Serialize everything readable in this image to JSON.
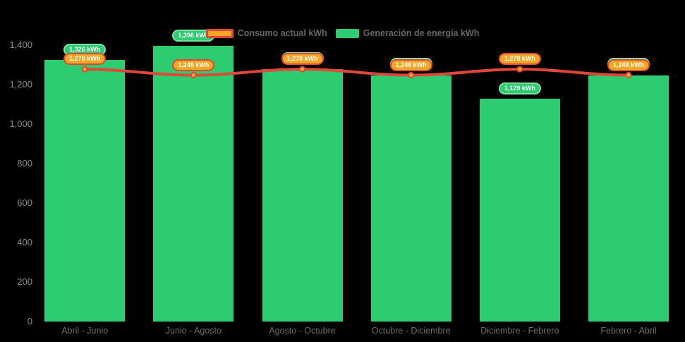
{
  "chart_data": {
    "type": "bar",
    "title": "",
    "xlabel": "",
    "ylabel": "",
    "categories": [
      "Abril - Junio",
      "Junio - Agosto",
      "Agosto - Octubre",
      "Octubre - Diciembre",
      "Diciembre - Febrero",
      "Febrero - Abril"
    ],
    "series": [
      {
        "name": "Consumo actual kWh",
        "type": "line",
        "values": [
          1278,
          1248,
          1278,
          1248,
          1278,
          1248
        ],
        "labels": [
          "1,278 kWh",
          "1,248 kWh",
          "1,278 kWh",
          "1,248 kWh",
          "1,278 kWh",
          "1,248 kWh"
        ]
      },
      {
        "name": "Generación de energía kWh",
        "type": "bar",
        "values": [
          1326,
          1396,
          1278,
          1248,
          1129,
          1248
        ],
        "labels": [
          "1,326 kWh",
          "1,396 kWh",
          "1,278 kWh",
          "1,248 kWh",
          "1,129 kWh",
          "1,248 kWh"
        ]
      }
    ],
    "ylim": [
      0,
      1400
    ],
    "y_ticks": {
      "values": [
        0,
        200,
        400,
        600,
        800,
        1000,
        1200,
        1400
      ],
      "labels": [
        "0",
        "200",
        "400",
        "600",
        "800",
        "1,000",
        "1,200",
        "1,400"
      ]
    },
    "grid": false,
    "legend_position": "top-center"
  },
  "colors": {
    "background": "#000000",
    "bar_green": "#2ecc71",
    "pill_green_border": "#7ee0a5",
    "line_red": "#e0473a",
    "marker_orange": "#f5a623",
    "pill_orange": "#f5a623",
    "pill_orange_border": "#e0473a",
    "axis_text": "#8a8a8a",
    "category_text": "#6e6e6e",
    "legend_text": "#666666"
  }
}
